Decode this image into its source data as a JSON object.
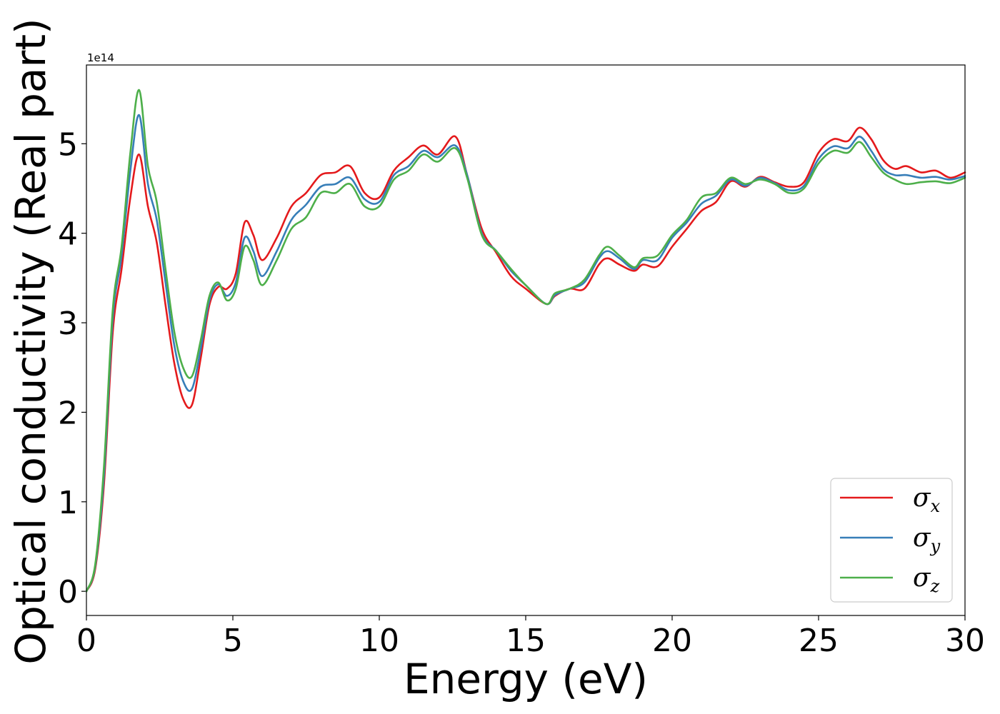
{
  "chart_data": {
    "type": "line",
    "xlabel": "Energy (eV)",
    "ylabel": "Optical conductivity (Real part)",
    "y_offset_label": "1e14",
    "xlim": [
      0,
      30
    ],
    "ylim": [
      -0.27,
      5.88
    ],
    "x_ticks": [
      0,
      5,
      10,
      15,
      20,
      25,
      30
    ],
    "y_ticks": [
      0,
      1,
      2,
      3,
      4,
      5
    ],
    "grid": false,
    "legend_position": "lower-right",
    "x": [
      0,
      0.3,
      0.6,
      0.9,
      1.2,
      1.5,
      1.8,
      2.1,
      2.4,
      2.7,
      3.0,
      3.3,
      3.6,
      3.9,
      4.2,
      4.5,
      4.8,
      5.1,
      5.4,
      5.7,
      6.0,
      6.5,
      7.0,
      7.5,
      8.0,
      8.5,
      9.0,
      9.5,
      10.0,
      10.5,
      11.0,
      11.5,
      12.0,
      12.6,
      13.0,
      13.5,
      14.0,
      14.5,
      15.0,
      15.7,
      16.0,
      16.5,
      17.0,
      17.5,
      17.8,
      18.2,
      18.7,
      19.0,
      19.5,
      20.0,
      20.5,
      21.0,
      21.5,
      22.0,
      22.5,
      23.0,
      23.5,
      24.0,
      24.5,
      25.0,
      25.5,
      26.0,
      26.4,
      26.8,
      27.2,
      27.6,
      28.0,
      28.5,
      29.0,
      29.5,
      30.0
    ],
    "series": [
      {
        "name": "σx",
        "color": "#e41a1c",
        "values": [
          0.0,
          0.25,
          1.2,
          2.9,
          3.6,
          4.4,
          4.88,
          4.3,
          3.9,
          3.2,
          2.55,
          2.15,
          2.08,
          2.6,
          3.2,
          3.4,
          3.38,
          3.55,
          4.12,
          3.98,
          3.7,
          3.95,
          4.3,
          4.45,
          4.65,
          4.68,
          4.75,
          4.45,
          4.4,
          4.7,
          4.85,
          4.98,
          4.88,
          5.08,
          4.65,
          4.05,
          3.78,
          3.52,
          3.38,
          3.21,
          3.3,
          3.38,
          3.38,
          3.65,
          3.72,
          3.65,
          3.58,
          3.65,
          3.63,
          3.85,
          4.05,
          4.25,
          4.35,
          4.58,
          4.52,
          4.63,
          4.57,
          4.52,
          4.57,
          4.9,
          5.05,
          5.03,
          5.18,
          5.05,
          4.82,
          4.72,
          4.75,
          4.68,
          4.7,
          4.62,
          4.68
        ]
      },
      {
        "name": "σy",
        "color": "#377eb8",
        "values": [
          0.0,
          0.28,
          1.3,
          3.05,
          3.75,
          4.7,
          5.32,
          4.55,
          4.15,
          3.45,
          2.75,
          2.35,
          2.26,
          2.7,
          3.25,
          3.43,
          3.3,
          3.45,
          3.95,
          3.8,
          3.52,
          3.8,
          4.15,
          4.32,
          4.52,
          4.55,
          4.62,
          4.38,
          4.35,
          4.65,
          4.75,
          4.92,
          4.85,
          4.98,
          4.65,
          4.0,
          3.8,
          3.58,
          3.42,
          3.21,
          3.31,
          3.38,
          3.45,
          3.72,
          3.8,
          3.72,
          3.6,
          3.7,
          3.7,
          3.95,
          4.12,
          4.33,
          4.42,
          4.6,
          4.53,
          4.62,
          4.56,
          4.48,
          4.53,
          4.83,
          4.97,
          4.95,
          5.08,
          4.92,
          4.72,
          4.65,
          4.65,
          4.62,
          4.63,
          4.6,
          4.64
        ]
      },
      {
        "name": "σz",
        "color": "#4daf4a",
        "values": [
          0.0,
          0.3,
          1.4,
          3.15,
          3.85,
          4.9,
          5.6,
          4.75,
          4.35,
          3.6,
          2.9,
          2.5,
          2.4,
          2.8,
          3.3,
          3.45,
          3.25,
          3.38,
          3.85,
          3.7,
          3.42,
          3.7,
          4.05,
          4.18,
          4.45,
          4.45,
          4.55,
          4.3,
          4.3,
          4.6,
          4.7,
          4.88,
          4.8,
          4.95,
          4.62,
          3.98,
          3.8,
          3.6,
          3.42,
          3.21,
          3.33,
          3.38,
          3.48,
          3.75,
          3.85,
          3.75,
          3.62,
          3.72,
          3.75,
          3.98,
          4.15,
          4.4,
          4.45,
          4.62,
          4.55,
          4.6,
          4.55,
          4.45,
          4.5,
          4.78,
          4.92,
          4.9,
          5.02,
          4.85,
          4.68,
          4.6,
          4.55,
          4.57,
          4.58,
          4.56,
          4.62
        ]
      }
    ]
  }
}
